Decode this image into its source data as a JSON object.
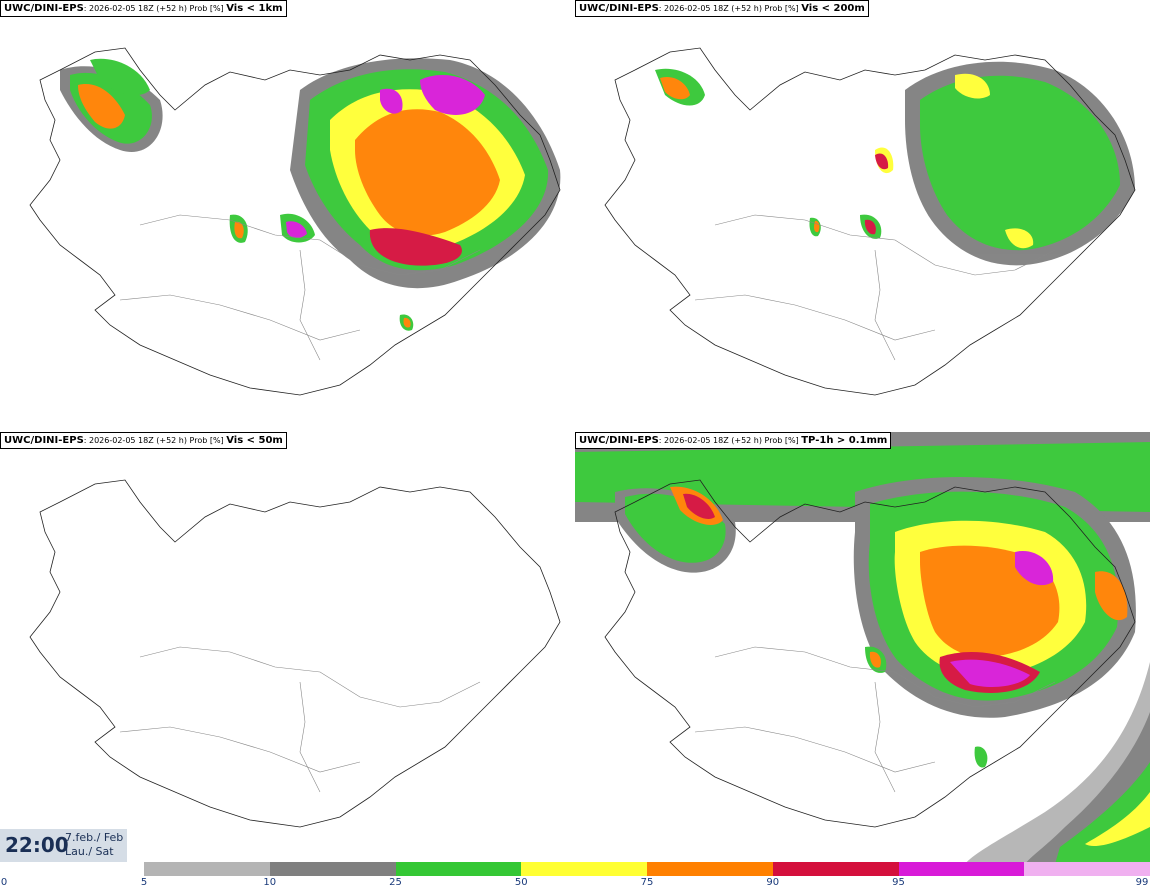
{
  "panels": [
    {
      "model": "UWC/DINI-EPS",
      "run": ": 2026-02-05 18Z (+52 h) Prob [%]",
      "field": "Vis < 1km"
    },
    {
      "model": "UWC/DINI-EPS",
      "run": ": 2026-02-05 18Z (+52 h) Prob [%]",
      "field": "Vis < 200m"
    },
    {
      "model": "UWC/DINI-EPS",
      "run": ": 2026-02-05 18Z (+52 h) Prob [%]",
      "field": "Vis < 50m"
    },
    {
      "model": "UWC/DINI-EPS",
      "run": ": 2026-02-05 18Z (+52 h) Prob [%]",
      "field": "TP-1h > 0.1mm"
    }
  ],
  "valid_time": {
    "time": "22:00",
    "date_line1": "7.feb./ Feb",
    "date_line2": "Lau./ Sat"
  },
  "colorbar": {
    "ticks": [
      "0",
      "5",
      "10",
      "25",
      "50",
      "75",
      "90",
      "95",
      "99"
    ],
    "colors": [
      "#b4b4b4",
      "#7f7f7f",
      "#34c734",
      "#ffff33",
      "#ff8000",
      "#d40f3c",
      "#d81ad8",
      "#f0b0f0"
    ]
  }
}
